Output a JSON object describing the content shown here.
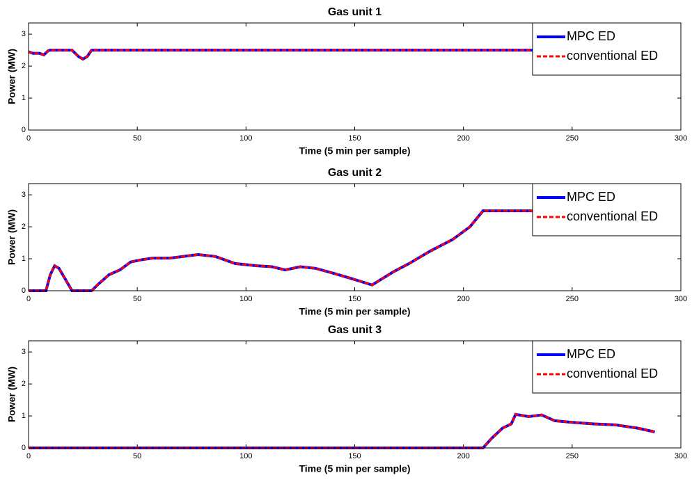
{
  "chart_data": [
    {
      "type": "line",
      "title": "Gas unit 1",
      "x_label": "Time (5 min per sample)",
      "y_label": "Power (MW)",
      "x": [
        0,
        2,
        5,
        7,
        9,
        10,
        20,
        23,
        25,
        27,
        29,
        288
      ],
      "series": [
        {
          "name": "MPC ED",
          "color": "#0000ff",
          "values": [
            2.45,
            2.4,
            2.4,
            2.35,
            2.48,
            2.5,
            2.5,
            2.3,
            2.22,
            2.3,
            2.5,
            2.5
          ]
        },
        {
          "name": "conventional ED",
          "color": "#ff0000",
          "values": [
            2.45,
            2.4,
            2.4,
            2.35,
            2.48,
            2.5,
            2.5,
            2.3,
            2.22,
            2.3,
            2.5,
            2.5
          ]
        }
      ],
      "xlim": [
        0,
        300
      ],
      "xticks": [
        0,
        50,
        100,
        150,
        200,
        250,
        300
      ],
      "ylim": [
        0,
        3.35
      ],
      "yticks": [
        0,
        1,
        2,
        3
      ],
      "legend": "upper right"
    },
    {
      "type": "line",
      "title": "Gas unit 2",
      "x_label": "Time (5 min per sample)",
      "y_label": "Power (MW)",
      "x": [
        0,
        8,
        10,
        12,
        14,
        17,
        20,
        29,
        32,
        37,
        42,
        47,
        52,
        57,
        65,
        72,
        78,
        86,
        95,
        105,
        112,
        118,
        125,
        132,
        140,
        150,
        158,
        162,
        168,
        175,
        185,
        195,
        203,
        209,
        288
      ],
      "series": [
        {
          "name": "MPC ED",
          "color": "#0000ff",
          "values": [
            0,
            0,
            0.5,
            0.78,
            0.7,
            0.35,
            0,
            0,
            0.2,
            0.5,
            0.65,
            0.9,
            0.97,
            1.02,
            1.02,
            1.08,
            1.13,
            1.07,
            0.85,
            0.78,
            0.75,
            0.65,
            0.75,
            0.7,
            0.55,
            0.35,
            0.18,
            0.35,
            0.6,
            0.85,
            1.25,
            1.6,
            2.0,
            2.5,
            2.5
          ]
        },
        {
          "name": "conventional ED",
          "color": "#ff0000",
          "values": [
            0,
            0,
            0.5,
            0.78,
            0.7,
            0.35,
            0,
            0,
            0.2,
            0.5,
            0.65,
            0.9,
            0.97,
            1.02,
            1.02,
            1.08,
            1.13,
            1.07,
            0.85,
            0.78,
            0.75,
            0.65,
            0.75,
            0.7,
            0.55,
            0.35,
            0.18,
            0.35,
            0.6,
            0.85,
            1.25,
            1.6,
            2.0,
            2.5,
            2.5
          ]
        }
      ],
      "xlim": [
        0,
        300
      ],
      "xticks": [
        0,
        50,
        100,
        150,
        200,
        250,
        300
      ],
      "ylim": [
        0,
        3.35
      ],
      "yticks": [
        0,
        1,
        2,
        3
      ],
      "legend": "upper right"
    },
    {
      "type": "line",
      "title": "Gas unit 3",
      "x_label": "Time (5 min per sample)",
      "y_label": "Power (MW)",
      "x": [
        0,
        209,
        213,
        218,
        222,
        224,
        230,
        236,
        242,
        250,
        260,
        270,
        280,
        288
      ],
      "series": [
        {
          "name": "MPC ED",
          "color": "#0000ff",
          "values": [
            0,
            0,
            0.3,
            0.62,
            0.75,
            1.05,
            0.98,
            1.03,
            0.85,
            0.8,
            0.75,
            0.72,
            0.62,
            0.5
          ]
        },
        {
          "name": "conventional ED",
          "color": "#ff0000",
          "values": [
            0,
            0,
            0.3,
            0.62,
            0.75,
            1.05,
            0.98,
            1.03,
            0.85,
            0.8,
            0.75,
            0.72,
            0.62,
            0.5
          ]
        }
      ],
      "xlim": [
        0,
        300
      ],
      "xticks": [
        0,
        50,
        100,
        150,
        200,
        250,
        300
      ],
      "ylim": [
        0,
        3.35
      ],
      "yticks": [
        0,
        1,
        2,
        3
      ],
      "legend": "upper right"
    }
  ]
}
